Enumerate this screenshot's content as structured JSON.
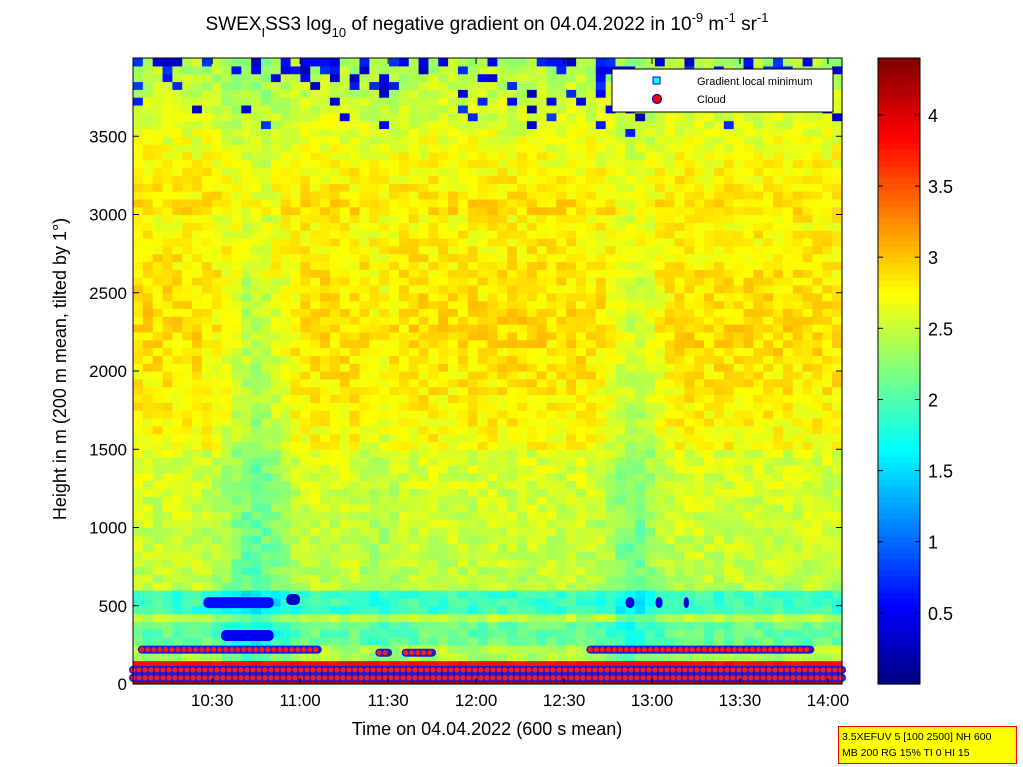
{
  "chart_data": {
    "type": "heatmap",
    "title": {
      "base": "SWEX",
      "sub1": "I",
      "mid": "SS3 log",
      "sub2": "10",
      "rest": " of negative gradient on 04.04.2022 in 10",
      "sup1": "-9",
      "unit_m": " m",
      "sup2": "-1",
      "unit_sr": " sr",
      "sup3": "-1"
    },
    "xlabel": "Time on 04.04.2022 (600 s mean)",
    "ylabel": "Height in m (200 m mean, tilted by 1°)",
    "xlim": [
      10.05,
      14.08
    ],
    "ylim": [
      0,
      4000
    ],
    "x_ticks": [
      {
        "value": 10.5,
        "label": "10:30"
      },
      {
        "value": 11.0,
        "label": "11:00"
      },
      {
        "value": 11.5,
        "label": "11:30"
      },
      {
        "value": 12.0,
        "label": "12:00"
      },
      {
        "value": 12.5,
        "label": "12:30"
      },
      {
        "value": 13.0,
        "label": "13:00"
      },
      {
        "value": 13.5,
        "label": "13:30"
      },
      {
        "value": 14.0,
        "label": "14:00"
      }
    ],
    "y_ticks": [
      {
        "value": 0,
        "label": "0"
      },
      {
        "value": 500,
        "label": "500"
      },
      {
        "value": 1000,
        "label": "1000"
      },
      {
        "value": 1500,
        "label": "1500"
      },
      {
        "value": 2000,
        "label": "2000"
      },
      {
        "value": 2500,
        "label": "2500"
      },
      {
        "value": 3000,
        "label": "3000"
      },
      {
        "value": 3500,
        "label": "3500"
      }
    ],
    "colorbar": {
      "colormap": "jet",
      "range": [
        0.0,
        4.4
      ],
      "ticks": [
        {
          "value": 0.5,
          "label": "0.5"
        },
        {
          "value": 1,
          "label": "1"
        },
        {
          "value": 1.5,
          "label": "1.5"
        },
        {
          "value": 2,
          "label": "2"
        },
        {
          "value": 2.5,
          "label": "2.5"
        },
        {
          "value": 3,
          "label": "3"
        },
        {
          "value": 3.5,
          "label": "3.5"
        },
        {
          "value": 4,
          "label": "4"
        }
      ]
    },
    "legend": {
      "placement": "top-right",
      "entries": [
        {
          "label": "Gradient local minimum",
          "marker": "square",
          "color": "#00ffff"
        },
        {
          "label": "Cloud",
          "marker": "circle",
          "color": "#ff0000"
        }
      ]
    },
    "field_description": {
      "background_value_low_levels": 2.6,
      "background_value_mid_levels": 2.9,
      "top_clear_sky_value": 0.2,
      "surface_layer_value": 4.3
    },
    "minimum_segments": [
      {
        "x_start": 10.45,
        "x_end": 10.85,
        "y": 520,
        "value": 0.6
      },
      {
        "x_start": 10.55,
        "x_end": 10.85,
        "y": 310,
        "value": 0.5
      },
      {
        "x_start": 10.92,
        "x_end": 11.0,
        "y": 540,
        "value": 0.3
      },
      {
        "x_start": 12.85,
        "x_end": 12.9,
        "y": 520,
        "value": 0.4
      },
      {
        "x_start": 13.02,
        "x_end": 13.06,
        "y": 520,
        "value": 0.4
      },
      {
        "x_start": 13.18,
        "x_end": 13.21,
        "y": 520,
        "value": 0.4
      }
    ],
    "cloud_base_segments": [
      {
        "x_start": 10.1,
        "x_end": 11.1,
        "y": 220
      },
      {
        "x_start": 11.45,
        "x_end": 11.5,
        "y": 200
      },
      {
        "x_start": 11.6,
        "x_end": 11.75,
        "y": 200
      },
      {
        "x_start": 12.65,
        "x_end": 13.9,
        "y": 220
      },
      {
        "x_start": 10.05,
        "x_end": 14.08,
        "y": 90
      },
      {
        "x_start": 10.05,
        "x_end": 14.08,
        "y": 40
      }
    ]
  },
  "info_box": {
    "line1": "3.5XEFUV 5 [100 2500] NH 600",
    "line2": "MB 200 RG 15% TI 0 HI 15"
  }
}
